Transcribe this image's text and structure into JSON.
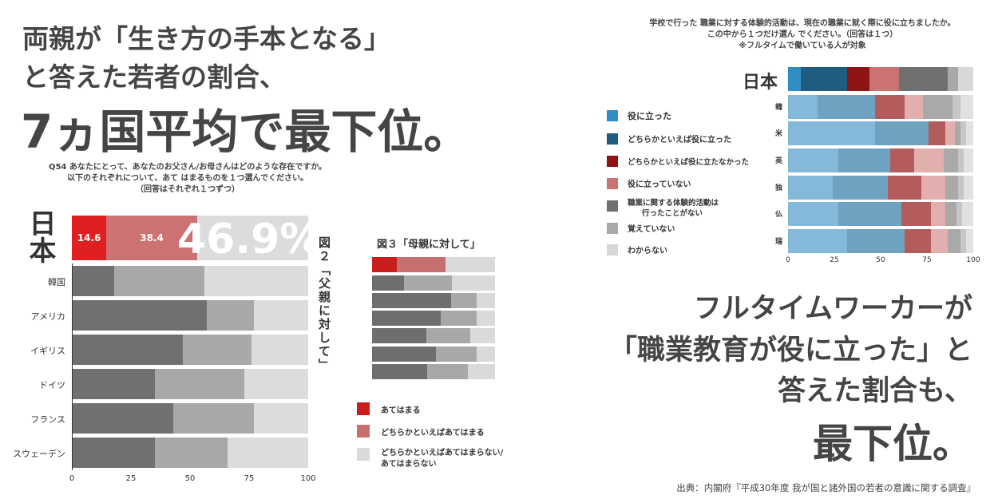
{
  "headline": {
    "line1": "両親が「生き方の手本となる」",
    "line2": "と答えた若者の割合、",
    "line3": "7ヵ国平均で最下位。"
  },
  "question_left": {
    "line1": "Q54 あなたにとって、あなたのお父さん/お母さんはどのような存在ですか。",
    "line2": "以下のそれぞれについて、あて はまるものを１つ選んでください。",
    "line3": "（回答はそれぞれ１つずつ）"
  },
  "fig2_label": "図２「父親に対して」",
  "fig3_label": "図３「母親に対して」",
  "japan_big_label": "日本",
  "japan_highlight": "46.9%",
  "chart_data": [
    {
      "type": "bar",
      "orientation": "horizontal",
      "stacked": true,
      "title": "図２「父親に対して」",
      "categories": [
        "日本",
        "韓国",
        "アメリカ",
        "イギリス",
        "ドイツ",
        "フランス",
        "スウェーデン"
      ],
      "series": [
        {
          "name": "あてはまる",
          "values": [
            14.6,
            18,
            57,
            47,
            35,
            43,
            35
          ]
        },
        {
          "name": "どちらかといえばあてはまる",
          "values": [
            38.4,
            38,
            20,
            29,
            38,
            34,
            31
          ]
        },
        {
          "name": "どちらかといえばあてはまらない/あてはまらない",
          "values": [
            47.0,
            44,
            23,
            24,
            27,
            23,
            34
          ]
        }
      ],
      "data_labels": [
        "14.6",
        "38.4"
      ],
      "xticks": [
        "0",
        "25",
        "50",
        "75",
        "100"
      ],
      "xlim": [
        0,
        100
      ]
    },
    {
      "type": "bar",
      "orientation": "horizontal",
      "stacked": true,
      "title": "図３「母親に対して」",
      "categories": [
        "日本",
        "韓国",
        "アメリカ",
        "イギリス",
        "ドイツ",
        "フランス",
        "スウェーデン"
      ],
      "series": [
        {
          "name": "あてはまる",
          "values": [
            20,
            26,
            64,
            56,
            44,
            52,
            45
          ]
        },
        {
          "name": "どちらかといえばあてはまる",
          "values": [
            40,
            39,
            21,
            29,
            36,
            33,
            33
          ]
        },
        {
          "name": "どちらかといえばあてはまらない/あてはまらない",
          "values": [
            40,
            35,
            15,
            15,
            20,
            15,
            22
          ]
        }
      ],
      "xlim": [
        0,
        100
      ]
    },
    {
      "type": "bar",
      "orientation": "horizontal",
      "stacked": true,
      "title": "学校で行った 職業に対する体験的活動は、現在の職業に就く際に役に立ちましたか。",
      "categories": [
        "日本",
        "韓",
        "米",
        "英",
        "独",
        "仏",
        "瑞"
      ],
      "series": [
        {
          "name": "役に立った",
          "values": [
            7,
            16,
            47,
            27,
            24,
            27,
            32
          ]
        },
        {
          "name": "どちらかといえば役に立った",
          "values": [
            25,
            31,
            29,
            28,
            30,
            34,
            31
          ]
        },
        {
          "name": "どちらかといえば役に立たなかった",
          "values": [
            12,
            16,
            9,
            13,
            18,
            16,
            14
          ]
        },
        {
          "name": "役に立っていない",
          "values": [
            16,
            10,
            5,
            16,
            13,
            8,
            9
          ]
        },
        {
          "name": "職業に関する体験的活動は行ったことがない",
          "values": [
            26,
            16,
            3,
            8,
            7,
            6,
            7
          ]
        },
        {
          "name": "覚えていない",
          "values": [
            6,
            4,
            3,
            3,
            3,
            3,
            3
          ]
        },
        {
          "name": "わからない",
          "values": [
            8,
            7,
            4,
            5,
            5,
            6,
            4
          ]
        }
      ],
      "xticks": [
        "0",
        "25",
        "50",
        "75",
        "100"
      ],
      "xlim": [
        0,
        100
      ]
    }
  ],
  "colors": {
    "fig2": [
      "#e02020",
      "#cd7272",
      "#dcdcdc"
    ],
    "fig2_other": [
      "#707070",
      "#a8a8a8",
      "#dcdcdc"
    ],
    "fig3": [
      "#cc1d1d",
      "#c87070",
      "#dadada"
    ],
    "fig3_other": [
      "#6e6e6e",
      "#a8a8a8",
      "#dadada"
    ],
    "right_japan": [
      "#2f8fc4",
      "#1f5c80",
      "#8e1414",
      "#cd7272",
      "#707070",
      "#a9a9a9",
      "#d8d8d8"
    ],
    "right_other": [
      "#84b9da",
      "#6fa2c0",
      "#b45c5c",
      "#e3aeae",
      "#a9a9a9",
      "#c6c6c6",
      "#e1e1e1"
    ]
  },
  "legend_left": [
    "あてはまる",
    "どちらかといえばあてはまる",
    "どちらかといえばあてはまらない/",
    "あてはまらない"
  ],
  "legend_right": [
    "役に立った",
    "どちらかといえば役に立った",
    "どちらかといえば役に立たなかった",
    "役に立っていない",
    "職業に関する体験的活動は",
    "行ったことがない",
    "覚えていない",
    "わからない"
  ],
  "question_right": {
    "line1": "学校で行った 職業に対する体験的活動は、現在の職業に就く際に役に立ちましたか。",
    "line2": "この中から１つだけ選ん でください。（回答は１つ）",
    "line3": "※フルタイムで働いている人が対象"
  },
  "headline_right": {
    "line1": "フルタイムワーカーが",
    "line2": "「職業教育が役に立った」と",
    "line3": "答えた割合も、",
    "line4": "最下位。"
  },
  "source": "出典：内閣府『平成30年度 我が国と諸外国の若者の意識に関する調査』"
}
